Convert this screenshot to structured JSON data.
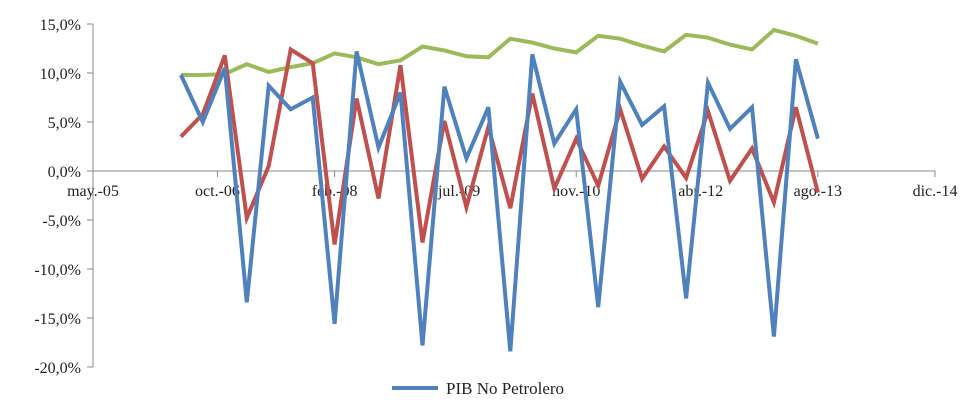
{
  "chart_data": {
    "type": "line",
    "title": "",
    "xlabel": "",
    "ylabel": "",
    "x_ticks": [
      "may.-05",
      "oct.-06",
      "feb.-08",
      "jul.-09",
      "nov.-10",
      "abr.-12",
      "ago.-13",
      "dic.-14"
    ],
    "y_ticks": [
      "15,0%",
      "10,0%",
      "5,0%",
      "0,0%",
      "-5,0%",
      "-10,0%",
      "-15,0%",
      "-20,0%"
    ],
    "ylim": [
      -20,
      15
    ],
    "grid": false,
    "legend": {
      "placement": "bottom",
      "entries": [
        "PIB No Petrolero"
      ]
    },
    "x": [
      "2006-05",
      "2006-08",
      "2006-11",
      "2007-02",
      "2007-05",
      "2007-08",
      "2007-11",
      "2008-02",
      "2008-05",
      "2008-08",
      "2008-11",
      "2009-02",
      "2009-05",
      "2009-08",
      "2009-11",
      "2010-02",
      "2010-05",
      "2010-08",
      "2010-11",
      "2011-02",
      "2011-05",
      "2011-08",
      "2011-11",
      "2012-02",
      "2012-05",
      "2012-08",
      "2012-11",
      "2013-02",
      "2013-05",
      "2013-08",
      "2013-11"
    ],
    "series": [
      {
        "name": "PIB No Petrolero",
        "color": "#4f81bd",
        "values": [
          9.8,
          5.0,
          10.5,
          -13.4,
          8.7,
          6.3,
          7.5,
          -15.6,
          12.2,
          2.4,
          8.0,
          -17.8,
          8.6,
          1.3,
          6.5,
          -18.4,
          11.9,
          2.8,
          6.3,
          -13.9,
          9.1,
          4.7,
          6.6,
          -13.0,
          9.0,
          4.3,
          6.5,
          -16.9,
          11.4,
          3.3,
          null
        ]
      },
      {
        "color": "#c0504d",
        "values": [
          3.5,
          5.8,
          11.8,
          -4.8,
          0.5,
          12.4,
          11.0,
          -7.5,
          7.4,
          -2.8,
          10.8,
          -7.3,
          5.1,
          -3.7,
          4.5,
          -3.8,
          7.9,
          -1.8,
          3.3,
          -1.5,
          6.3,
          -0.8,
          2.5,
          -0.7,
          6.1,
          -1.0,
          2.3,
          -3.2,
          6.5,
          -2.2,
          null
        ]
      },
      {
        "color": "#9bbb59",
        "values": [
          9.8,
          9.8,
          9.9,
          10.9,
          10.1,
          10.6,
          11.0,
          12.0,
          11.6,
          10.9,
          11.3,
          12.7,
          12.3,
          11.7,
          11.6,
          13.5,
          13.1,
          12.5,
          12.1,
          13.8,
          13.5,
          12.8,
          12.2,
          13.9,
          13.6,
          12.9,
          12.4,
          14.4,
          13.8,
          13.0,
          null
        ]
      }
    ]
  }
}
